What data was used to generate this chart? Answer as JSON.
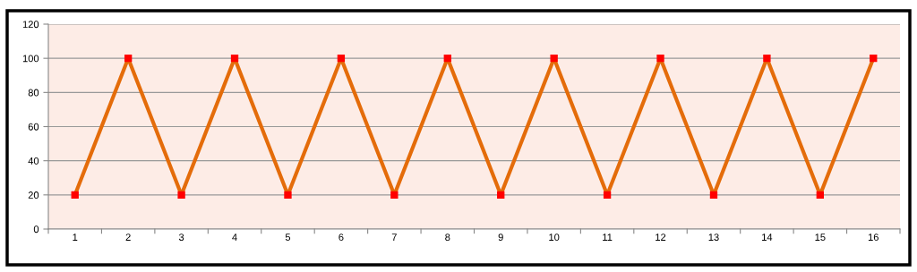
{
  "chart_data": {
    "type": "line",
    "categories": [
      "1",
      "2",
      "3",
      "4",
      "5",
      "6",
      "7",
      "8",
      "9",
      "10",
      "11",
      "12",
      "13",
      "14",
      "15",
      "16"
    ],
    "series": [
      {
        "color": "#e46c0a",
        "values": [
          20,
          100,
          20,
          100,
          20,
          100,
          20,
          100,
          20,
          100,
          20,
          100,
          20,
          100,
          20,
          100
        ]
      }
    ],
    "ylim": [
      0,
      120
    ],
    "yticks": [
      0,
      20,
      40,
      60,
      80,
      100,
      120
    ],
    "grid": "y",
    "marker": "square",
    "line_style": "solid",
    "legend": false
  }
}
